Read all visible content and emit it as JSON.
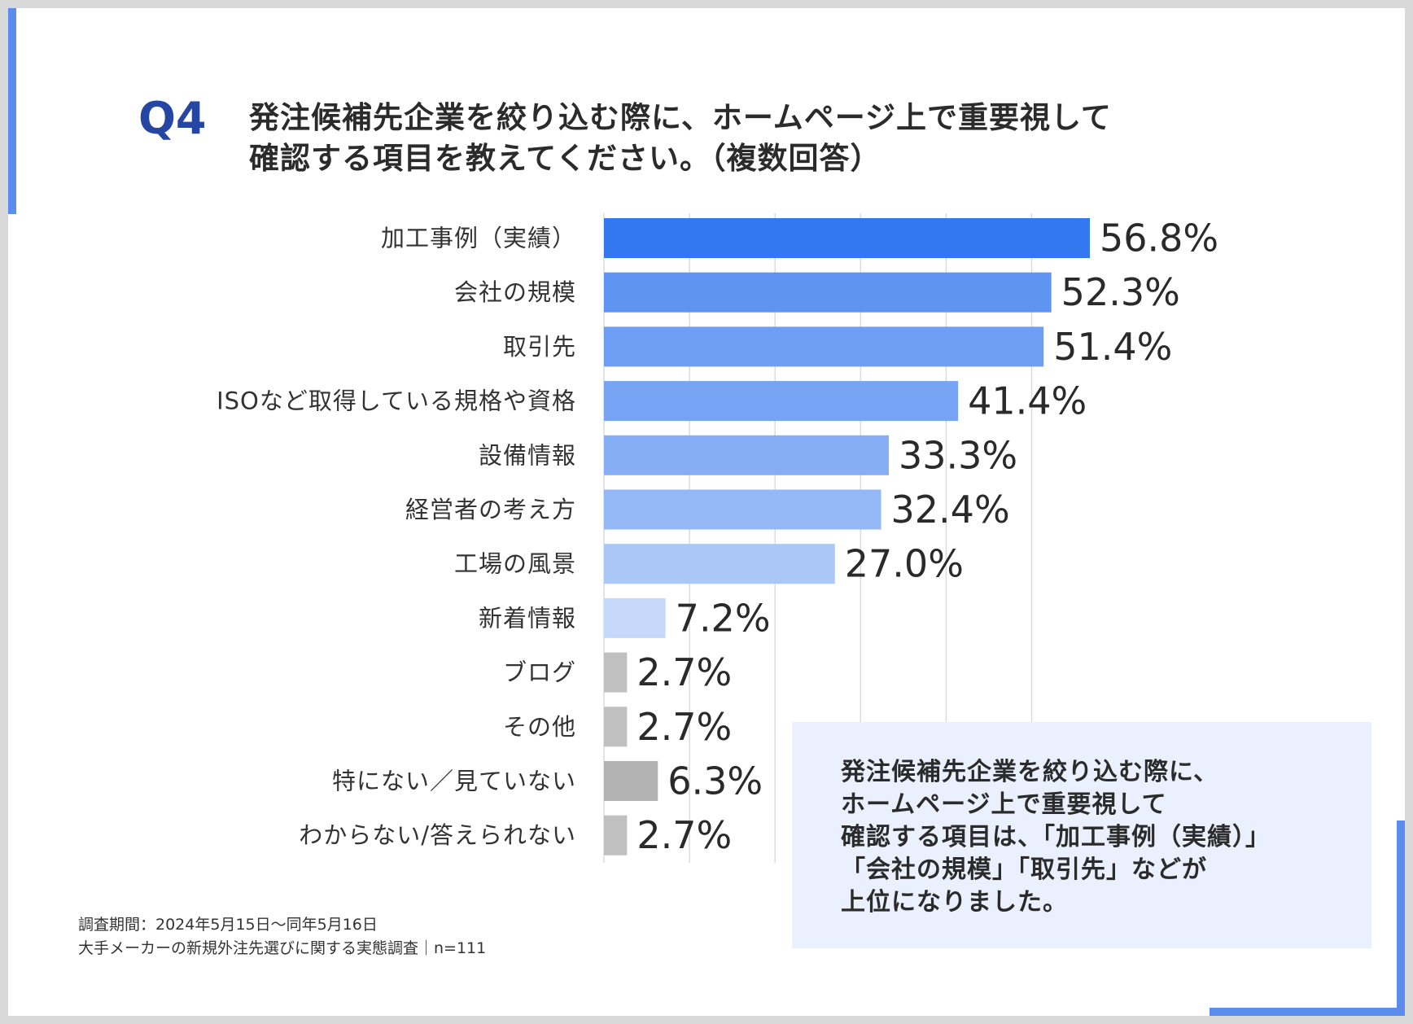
{
  "header": {
    "q_label": "Q4",
    "question_line1": "発注候補先企業を絞り込む際に、ホームページ上で重要視して",
    "question_line2": "確認する項目を教えてください。（複数回答）"
  },
  "chart_data": {
    "type": "bar",
    "orientation": "horizontal",
    "categories": [
      "加工事例（実績）",
      "会社の規模",
      "取引先",
      "ISOなど取得している規格や資格",
      "設備情報",
      "経営者の考え方",
      "工場の風景",
      "新着情報",
      "ブログ",
      "その他",
      "特にない／見ていない",
      "わからない/答えられない"
    ],
    "values": [
      56.8,
      52.3,
      51.4,
      41.4,
      33.3,
      32.4,
      27.0,
      7.2,
      2.7,
      2.7,
      6.3,
      2.7
    ],
    "value_labels": [
      "56.8%",
      "52.3%",
      "51.4%",
      "41.4%",
      "33.3%",
      "32.4%",
      "27.0%",
      "7.2%",
      "2.7%",
      "2.7%",
      "6.3%",
      "2.7%"
    ],
    "colors": [
      "#3478f0",
      "#5f94f3",
      "#6d9ef4",
      "#76a3f4",
      "#86aef5",
      "#94b8f6",
      "#abc7f8",
      "#c7d9fa",
      "#c0c0c0",
      "#c0c0c0",
      "#b3b3b3",
      "#c0c0c0"
    ],
    "xlim": [
      0,
      60
    ],
    "grid": true,
    "title": "",
    "xlabel": "",
    "ylabel": ""
  },
  "note": {
    "lines": [
      "発注候補先企業を絞り込む際に、",
      "ホームページ上で重要視して",
      "確認する項目は、「加工事例（実績）」",
      "「会社の規模」「取引先」などが",
      "上位になりました。"
    ]
  },
  "footnote": {
    "line1": "調査期間：2024年5月15日～同年5月16日",
    "line2": "大手メーカーの新規外注先選びに関する実態調査｜n=111"
  }
}
